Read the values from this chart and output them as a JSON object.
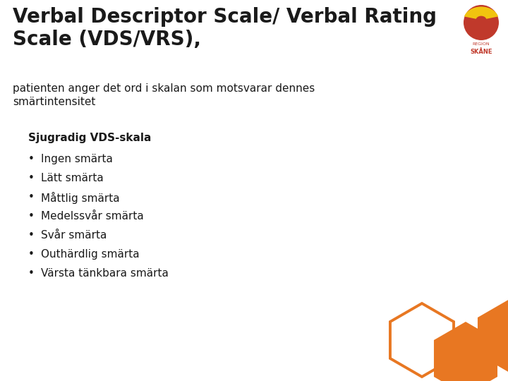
{
  "title_line1": "Verbal Descriptor Scale/ Verbal Rating",
  "title_line2": "Scale (VDS/VRS),",
  "subtitle_line1": "patienten anger det ord i skalan som motsvarar dennes",
  "subtitle_line2": "smärtintensitet",
  "section_header": "Sjugradig VDS-skala",
  "bullet_items": [
    "Ingen smärta",
    "Lätt smärta",
    "Måttlig smärta",
    "Medelssvår smärta",
    "Svår smärta",
    "Outhärdlig smärta",
    "Värsta tänkbara smärta"
  ],
  "background_color": "#ffffff",
  "text_color": "#1a1a1a",
  "title_fontsize": 20,
  "subtitle_fontsize": 11,
  "header_fontsize": 11,
  "bullet_fontsize": 11,
  "orange_color": "#E87722",
  "logo_red": "#c0392b",
  "logo_yellow": "#f1c40f"
}
